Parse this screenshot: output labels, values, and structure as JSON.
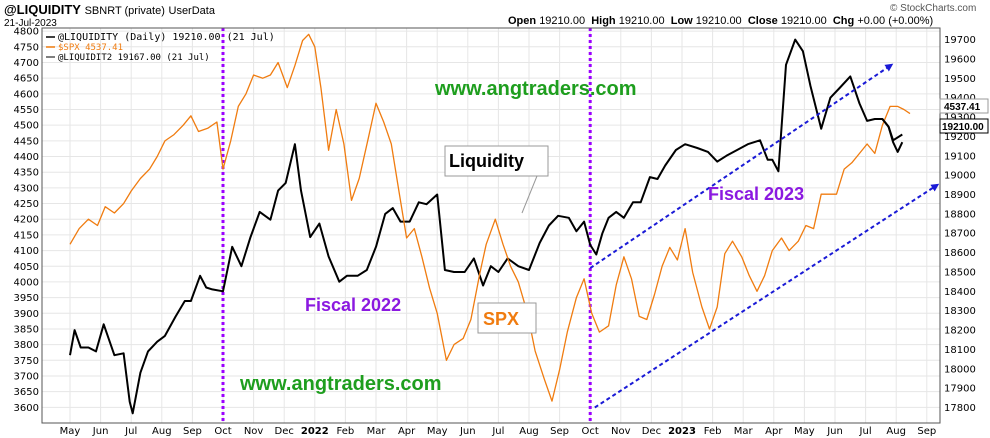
{
  "header": {
    "symbol": "@LIQUIDITY",
    "symbol_meta": "SBNRT (private)",
    "user_data": "UserData",
    "date": "21-Jul-2023",
    "open_label": "Open",
    "open": "19210.00",
    "high_label": "High",
    "high": "19210.00",
    "low_label": "Low",
    "low": "19210.00",
    "close_label": "Close",
    "close": "19210.00",
    "chg_label": "Chg",
    "chg": "+0.00 (+0.00%)",
    "watermark": "© StockCharts.com"
  },
  "legend": [
    {
      "text": "@LIQUIDITY (Daily) 19210.00 (21 Jul)",
      "color": "#000000"
    },
    {
      "text": "$SPX 4537.41",
      "color": "#f07c10"
    },
    {
      "text": "@LIQUIDIT2 19167.00 (21 Jul)",
      "color": "#000000"
    }
  ],
  "annotations": {
    "site_top": "www.angtraders.com",
    "site_bottom": "www.angtraders.com",
    "liquidity": "Liquidity",
    "spx": "SPX",
    "fiscal_2022": "Fiscal 2022",
    "fiscal_2023": "Fiscal 2023"
  },
  "chart_data": {
    "type": "line",
    "left_axis": {
      "min": 3550,
      "max": 4810,
      "ticks": [
        3600,
        3650,
        3700,
        3750,
        3800,
        3850,
        3900,
        3950,
        4000,
        4050,
        4100,
        4150,
        4200,
        4250,
        4300,
        4350,
        4400,
        4450,
        4500,
        4550,
        4600,
        4650,
        4700,
        4750,
        4800
      ]
    },
    "right_axis": {
      "min": 17720,
      "max": 19760,
      "ticks": [
        17800,
        17900,
        18000,
        18100,
        18200,
        18300,
        18400,
        18500,
        18600,
        18700,
        18800,
        18900,
        19000,
        19100,
        19200,
        19300,
        19400,
        19500,
        19600,
        19700
      ]
    },
    "x_ticks": [
      "May",
      "Jun",
      "Jul",
      "Aug",
      "Sep",
      "Oct",
      "Nov",
      "Dec",
      "2022",
      "Feb",
      "Mar",
      "Apr",
      "May",
      "Jun",
      "Jul",
      "Aug",
      "Sep",
      "Oct",
      "Nov",
      "Dec",
      "2023",
      "Feb",
      "Mar",
      "Apr",
      "May",
      "Jun",
      "Jul",
      "Aug",
      "Sep"
    ],
    "last_values": {
      "spx": "4537.41",
      "liquidity": "19210.00"
    },
    "series": [
      {
        "name": "@LIQUIDITY",
        "axis": "right",
        "color": "#000000",
        "points": [
          [
            0,
            18070
          ],
          [
            0.15,
            18200
          ],
          [
            0.35,
            18110
          ],
          [
            0.6,
            18110
          ],
          [
            0.85,
            18090
          ],
          [
            1.1,
            18230
          ],
          [
            1.45,
            18070
          ],
          [
            1.75,
            18080
          ],
          [
            1.95,
            17830
          ],
          [
            2.05,
            17770
          ],
          [
            2.3,
            17980
          ],
          [
            2.55,
            18090
          ],
          [
            2.85,
            18140
          ],
          [
            3.1,
            18170
          ],
          [
            3.45,
            18270
          ],
          [
            3.75,
            18350
          ],
          [
            3.95,
            18350
          ],
          [
            4.25,
            18480
          ],
          [
            4.45,
            18420
          ],
          [
            4.65,
            18410
          ],
          [
            5.0,
            18400
          ],
          [
            5.3,
            18630
          ],
          [
            5.6,
            18530
          ],
          [
            5.9,
            18680
          ],
          [
            6.2,
            18810
          ],
          [
            6.55,
            18770
          ],
          [
            6.8,
            18920
          ],
          [
            7.05,
            18960
          ],
          [
            7.35,
            19160
          ],
          [
            7.55,
            18920
          ],
          [
            7.85,
            18680
          ],
          [
            8.15,
            18750
          ],
          [
            8.45,
            18580
          ],
          [
            8.8,
            18450
          ],
          [
            9.05,
            18480
          ],
          [
            9.4,
            18480
          ],
          [
            9.7,
            18510
          ],
          [
            10.0,
            18630
          ],
          [
            10.3,
            18800
          ],
          [
            10.55,
            18830
          ],
          [
            10.8,
            18760
          ],
          [
            11.1,
            18760
          ],
          [
            11.4,
            18860
          ],
          [
            11.65,
            18850
          ],
          [
            12.0,
            18900
          ],
          [
            12.25,
            18510
          ],
          [
            12.55,
            18500
          ],
          [
            12.9,
            18500
          ],
          [
            13.2,
            18570
          ],
          [
            13.5,
            18430
          ],
          [
            13.75,
            18530
          ],
          [
            14.0,
            18500
          ],
          [
            14.3,
            18570
          ],
          [
            14.65,
            18530
          ],
          [
            15.0,
            18510
          ],
          [
            15.35,
            18650
          ],
          [
            15.65,
            18740
          ],
          [
            15.95,
            18790
          ],
          [
            16.3,
            18780
          ],
          [
            16.55,
            18710
          ],
          [
            16.8,
            18760
          ],
          [
            17.0,
            18640
          ],
          [
            17.2,
            18590
          ],
          [
            17.4,
            18700
          ],
          [
            17.6,
            18780
          ],
          [
            17.85,
            18810
          ],
          [
            18.1,
            18780
          ],
          [
            18.4,
            18860
          ],
          [
            18.65,
            18860
          ],
          [
            18.95,
            18990
          ],
          [
            19.2,
            18980
          ],
          [
            19.45,
            19050
          ],
          [
            19.8,
            19130
          ],
          [
            20.1,
            19160
          ],
          [
            20.5,
            19140
          ],
          [
            20.85,
            19120
          ],
          [
            21.15,
            19070
          ],
          [
            21.45,
            19100
          ],
          [
            21.8,
            19130
          ],
          [
            22.15,
            19160
          ],
          [
            22.55,
            19180
          ],
          [
            22.8,
            19080
          ],
          [
            22.95,
            19080
          ],
          [
            23.15,
            19020
          ],
          [
            23.4,
            19570
          ],
          [
            23.7,
            19700
          ],
          [
            23.95,
            19640
          ],
          [
            24.2,
            19460
          ],
          [
            24.55,
            19240
          ],
          [
            24.85,
            19400
          ],
          [
            25.15,
            19450
          ],
          [
            25.5,
            19510
          ],
          [
            25.8,
            19370
          ],
          [
            26.05,
            19280
          ],
          [
            26.3,
            19290
          ],
          [
            26.55,
            19290
          ],
          [
            26.75,
            19250
          ],
          [
            26.9,
            19180
          ],
          [
            27.2,
            19210
          ]
        ]
      },
      {
        "name": "$SPX",
        "axis": "left",
        "color": "#f07c10",
        "points": [
          [
            0,
            4120
          ],
          [
            0.3,
            4170
          ],
          [
            0.6,
            4200
          ],
          [
            0.9,
            4180
          ],
          [
            1.15,
            4240
          ],
          [
            1.45,
            4220
          ],
          [
            1.75,
            4250
          ],
          [
            2.0,
            4290
          ],
          [
            2.3,
            4330
          ],
          [
            2.6,
            4360
          ],
          [
            2.85,
            4400
          ],
          [
            3.1,
            4450
          ],
          [
            3.4,
            4470
          ],
          [
            3.7,
            4500
          ],
          [
            3.95,
            4530
          ],
          [
            4.2,
            4480
          ],
          [
            4.5,
            4490
          ],
          [
            4.8,
            4510
          ],
          [
            5.0,
            4360
          ],
          [
            5.25,
            4450
          ],
          [
            5.5,
            4560
          ],
          [
            5.75,
            4600
          ],
          [
            6.0,
            4660
          ],
          [
            6.3,
            4650
          ],
          [
            6.55,
            4660
          ],
          [
            6.8,
            4700
          ],
          [
            7.1,
            4620
          ],
          [
            7.35,
            4690
          ],
          [
            7.6,
            4770
          ],
          [
            7.8,
            4790
          ],
          [
            8.0,
            4750
          ],
          [
            8.2,
            4620
          ],
          [
            8.45,
            4420
          ],
          [
            8.7,
            4550
          ],
          [
            8.95,
            4440
          ],
          [
            9.2,
            4260
          ],
          [
            9.45,
            4330
          ],
          [
            9.75,
            4460
          ],
          [
            10.0,
            4570
          ],
          [
            10.25,
            4510
          ],
          [
            10.5,
            4440
          ],
          [
            10.75,
            4290
          ],
          [
            11.0,
            4140
          ],
          [
            11.25,
            4170
          ],
          [
            11.5,
            4080
          ],
          [
            11.75,
            3980
          ],
          [
            12.0,
            3900
          ],
          [
            12.3,
            3750
          ],
          [
            12.55,
            3800
          ],
          [
            12.85,
            3820
          ],
          [
            13.1,
            3880
          ],
          [
            13.4,
            4030
          ],
          [
            13.6,
            4120
          ],
          [
            13.9,
            4200
          ],
          [
            14.15,
            4120
          ],
          [
            14.4,
            4050
          ],
          [
            14.65,
            4000
          ],
          [
            14.95,
            3900
          ],
          [
            15.2,
            3780
          ],
          [
            15.5,
            3690
          ],
          [
            15.75,
            3620
          ],
          [
            16.0,
            3720
          ],
          [
            16.25,
            3840
          ],
          [
            16.55,
            3950
          ],
          [
            16.8,
            4010
          ],
          [
            17.05,
            3900
          ],
          [
            17.3,
            3840
          ],
          [
            17.6,
            3860
          ],
          [
            17.85,
            3990
          ],
          [
            18.1,
            4080
          ],
          [
            18.35,
            4010
          ],
          [
            18.6,
            3890
          ],
          [
            18.85,
            3880
          ],
          [
            19.1,
            3960
          ],
          [
            19.35,
            4050
          ],
          [
            19.6,
            4110
          ],
          [
            19.85,
            4070
          ],
          [
            20.1,
            4170
          ],
          [
            20.35,
            4030
          ],
          [
            20.65,
            3920
          ],
          [
            20.9,
            3850
          ],
          [
            21.15,
            3920
          ],
          [
            21.4,
            4090
          ],
          [
            21.65,
            4130
          ],
          [
            21.95,
            4080
          ],
          [
            22.2,
            4020
          ],
          [
            22.45,
            3970
          ],
          [
            22.7,
            4020
          ],
          [
            22.95,
            4100
          ],
          [
            23.25,
            4140
          ],
          [
            23.5,
            4100
          ],
          [
            23.8,
            4130
          ],
          [
            24.05,
            4180
          ],
          [
            24.3,
            4170
          ],
          [
            24.55,
            4280
          ],
          [
            24.8,
            4280
          ],
          [
            25.05,
            4280
          ],
          [
            25.3,
            4360
          ],
          [
            25.55,
            4380
          ],
          [
            25.8,
            4410
          ],
          [
            26.05,
            4440
          ],
          [
            26.3,
            4410
          ],
          [
            26.55,
            4500
          ],
          [
            26.8,
            4560
          ],
          [
            27.05,
            4560
          ],
          [
            27.25,
            4550
          ],
          [
            27.45,
            4537
          ]
        ]
      },
      {
        "name": "@LIQUIDIT2",
        "axis": "right",
        "color": "#000000",
        "points": [
          [
            26.55,
            19290
          ],
          [
            26.75,
            19250
          ],
          [
            26.9,
            19170
          ],
          [
            27.05,
            19120
          ],
          [
            27.2,
            19170
          ]
        ]
      }
    ],
    "vertical_markers": [
      {
        "x": 5.0,
        "color": "#9b00ff"
      },
      {
        "x": 17.0,
        "color": "#9b00ff"
      }
    ],
    "trend_arrows": [
      {
        "from": [
          17.0,
          18520
        ],
        "to": [
          26.85,
          19570
        ],
        "axis": "right",
        "color": "#1a1ad6"
      },
      {
        "from": [
          17.15,
          17800
        ],
        "to": [
          28.35,
          18950
        ],
        "axis": "right",
        "color": "#1a1ad6"
      }
    ]
  }
}
